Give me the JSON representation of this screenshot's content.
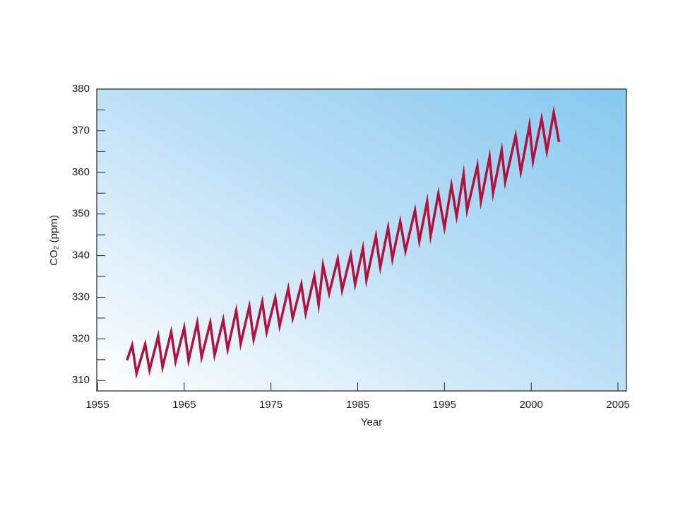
{
  "chart_data": {
    "type": "line",
    "x_label": "Year",
    "y_label": "CO₂ (ppm)",
    "xlim": [
      1955,
      2005.5
    ],
    "xticks": [
      1955,
      1965,
      1975,
      1985,
      1995,
      2000,
      2005
    ],
    "ylim": [
      307.5,
      380
    ],
    "yticks": [
      310,
      320,
      330,
      340,
      350,
      360,
      370,
      380
    ],
    "yminorticks": [
      315,
      325,
      335,
      345,
      355,
      365,
      375
    ],
    "series": [
      {
        "color": "#b0123e",
        "x": [
          1958.4,
          1959.0,
          1959.5,
          1960.5,
          1961.0,
          1962.0,
          1962.5,
          1963.5,
          1964.0,
          1965.0,
          1965.5,
          1966.5,
          1967.0,
          1968.0,
          1968.5,
          1969.5,
          1970.0,
          1971.0,
          1971.5,
          1972.5,
          1973.0,
          1974.0,
          1974.5,
          1975.5,
          1976.0,
          1977.0,
          1977.5,
          1978.5,
          1979.0,
          1980.0,
          1980.5,
          1981.0,
          1981.7,
          1982.7,
          1983.2,
          1984.2,
          1984.7,
          1985.6,
          1986.0,
          1987.1,
          1987.6,
          1988.5,
          1989.0,
          1989.9,
          1990.5,
          1991.6,
          1992.1,
          1993.0,
          1993.4,
          1994.3,
          1995.0,
          1995.4,
          1995.7,
          1996.1,
          1996.3,
          1996.9,
          1997.1,
          1997.6,
          1997.8,
          1998.3,
          1998.5,
          1999.1,
          1999.4,
          1999.9,
          2000.1,
          2000.6,
          2000.9,
          2001.3,
          2001.6
        ],
        "values": [
          314.9,
          318.5,
          311.7,
          318.7,
          312.5,
          320.7,
          313.2,
          321.7,
          314.6,
          322.7,
          314.8,
          323.9,
          315.6,
          323.9,
          316.1,
          324.6,
          317.5,
          326.8,
          318.8,
          327.8,
          319.9,
          328.9,
          321.6,
          329.9,
          323.1,
          332.1,
          325.0,
          333.1,
          326.1,
          335.1,
          328.2,
          337.7,
          330.9,
          339.2,
          331.7,
          340.2,
          333.1,
          341.8,
          334.1,
          344.7,
          337.2,
          346.7,
          339.2,
          348.2,
          341.1,
          350.9,
          343.5,
          353.0,
          344.7,
          354.9,
          346.7,
          356.9,
          349.4,
          359.6,
          350.9,
          361.6,
          353.0,
          363.7,
          355.0,
          365.4,
          357.7,
          368.8,
          360.1,
          371.3,
          362.7,
          372.9,
          365.0,
          374.4,
          367.3
        ]
      }
    ]
  }
}
